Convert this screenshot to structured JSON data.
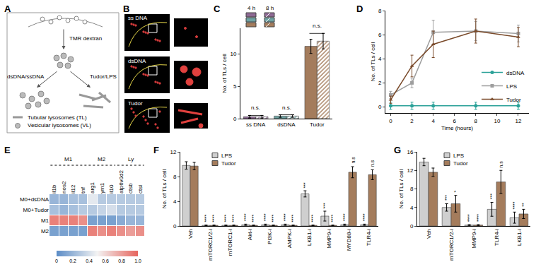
{
  "diagram": {
    "panel": "A",
    "labels": {
      "stimulus": "TMR dextran",
      "left": "dsDNA/ssDNA",
      "right": "Tudor/LPS",
      "tubular": "Tubular lysosomes (TL)",
      "vesicular": "Vesicular lysosomes (VL)"
    }
  },
  "images": {
    "panel": "B",
    "labels": [
      "ss DNA",
      "dsDNA",
      "Tudor"
    ]
  },
  "chart_data": [
    {
      "panel": "C",
      "type": "bar",
      "legend": "top",
      "categories": [
        "ss DNA",
        "dsDNA",
        "Tudor"
      ],
      "y_label": "No. of TLs / cell",
      "ylim": [
        0,
        14
      ],
      "yticks": [
        0,
        5,
        10
      ],
      "series": [
        {
          "name": "4 h",
          "colors": [
            "#8e6a94",
            "#6fa3a3",
            "#a47c5c"
          ],
          "values": [
            0.3,
            0.4,
            11.2
          ],
          "errors": [
            0.2,
            0.2,
            1.1
          ]
        },
        {
          "name": "8 h",
          "colors": [
            "#8e6a94",
            "#6fa3a3",
            "#a47c5c"
          ],
          "values": [
            0.3,
            0.4,
            12.0
          ],
          "errors": [
            0.2,
            0.2,
            1.2
          ],
          "marker": "hatched"
        }
      ],
      "annotations": [
        "n.s.",
        "n.s.",
        "n.s."
      ]
    },
    {
      "panel": "D",
      "type": "line",
      "legend": "right",
      "x": [
        0,
        2,
        4,
        8,
        12
      ],
      "x_label": "Time (hours)",
      "y_label": "No. of TLs / cell",
      "xlim": [
        -0.5,
        13
      ],
      "xticks": [
        0,
        2,
        4,
        6,
        8,
        10,
        12
      ],
      "ylim": [
        -0.5,
        8
      ],
      "yticks": [
        0,
        2,
        4,
        6,
        8
      ],
      "series": [
        {
          "name": "dsDNA",
          "color": "#2aa198",
          "marker": "circle",
          "line_style": "solid",
          "values": [
            0.1,
            0.1,
            0.1,
            0.1,
            0.1
          ],
          "errors": [
            0.3,
            0.3,
            0.3,
            0.3,
            0.3
          ]
        },
        {
          "name": "LPS",
          "color": "#9e9e9e",
          "marker": "square",
          "line_style": "solid",
          "values": [
            1.0,
            2.0,
            6.2,
            6.3,
            6.1
          ],
          "errors": [
            0.3,
            0.4,
            1.0,
            0.8,
            0.7
          ]
        },
        {
          "name": "Tudor",
          "color": "#7a4a2a",
          "marker": "triangle-up",
          "line_style": "solid",
          "values": [
            0.6,
            3.4,
            5.2,
            6.3,
            5.8
          ],
          "errors": [
            0.3,
            0.9,
            1.1,
            1.0,
            0.8
          ]
        }
      ]
    },
    {
      "panel": "E",
      "type": "heatmap",
      "columns": [
        "il1b",
        "nos2",
        "il12",
        "tnf",
        "arg1",
        "ym1",
        "il10",
        "atp6v0d2",
        "ctsb",
        "ctsl"
      ],
      "rows": [
        "M0+dsDNA",
        "M0+Tudor",
        "M1",
        "M2"
      ],
      "column_groups": [
        {
          "label": "M1",
          "columns": [
            "il1b",
            "nos2",
            "il12",
            "tnf"
          ]
        },
        {
          "label": "M2",
          "columns": [
            "arg1",
            "ym1",
            "il10"
          ]
        },
        {
          "label": "Ly",
          "columns": [
            "atp6v0d2",
            "ctsb",
            "ctsl"
          ]
        }
      ],
      "cells": [
        [
          0.2,
          0.2,
          0.25,
          0.25,
          0.45,
          0.3,
          0.3,
          0.3,
          0.3,
          0.3
        ],
        [
          0.25,
          0.2,
          0.25,
          0.3,
          0.3,
          0.35,
          0.4,
          0.3,
          0.3,
          0.3
        ],
        [
          0.9,
          0.9,
          0.9,
          0.85,
          0.1,
          0.1,
          0.1,
          0.15,
          0.2,
          0.2
        ],
        [
          0.1,
          0.1,
          0.1,
          0.1,
          0.9,
          0.85,
          0.9,
          0.85,
          0.8,
          0.85
        ]
      ],
      "zlim": [
        0,
        1
      ],
      "zticks": [
        0,
        0.2,
        0.4,
        0.6,
        0.8,
        {
          "value": 1,
          "label": "1.0"
        }
      ]
    },
    {
      "panel": "F",
      "type": "bar",
      "legend": "top",
      "categories": [
        "Veh",
        "mTORC1/2-i",
        "mTORC1-i",
        "Akt-i",
        "PI3K-i",
        "AMPK-i",
        "LKB1-i",
        "MMP9-i",
        "MYD88-i",
        "TLR4-i"
      ],
      "y_label": "No. of TLs / cell",
      "ylim": [
        0,
        12
      ],
      "yticks": [
        0,
        4,
        8,
        12
      ],
      "series": [
        {
          "name": "LPS",
          "color": "#cfcfcf",
          "values": [
            9.8,
            0.1,
            0.1,
            0.2,
            0.2,
            0.2,
            5.2,
            1.6,
            0.2,
            0.2
          ],
          "errors": [
            0.6,
            0.05,
            0.05,
            0.1,
            0.1,
            0.1,
            0.5,
            0.8,
            0.1,
            0.1
          ],
          "annotations": [
            null,
            "****",
            "****",
            "****",
            "****",
            "****",
            "***",
            "***",
            "****",
            "****"
          ]
        },
        {
          "name": "Tudor",
          "color": "#a47c5c",
          "values": [
            9.7,
            0.1,
            0.1,
            0.1,
            0.1,
            0.1,
            0.1,
            0.1,
            8.7,
            8.3
          ],
          "errors": [
            0.6,
            0.05,
            0.05,
            0.05,
            0.05,
            0.05,
            0.05,
            0.05,
            0.9,
            0.8
          ],
          "annotations": [
            null,
            "****",
            "****",
            "****",
            "****",
            "****",
            "****",
            "****",
            "n.s",
            "n.s"
          ]
        }
      ]
    },
    {
      "panel": "G",
      "type": "bar",
      "legend": "top",
      "categories": [
        "Veh",
        "mTORC1/2-i",
        "MMP9-i",
        "TLR4-i",
        "LKB1-i"
      ],
      "y_label": "No. of TLs / cell",
      "ylim": [
        0,
        16
      ],
      "yticks": [
        0,
        4,
        8,
        12,
        16
      ],
      "series": [
        {
          "name": "LPS",
          "color": "#cfcfcf",
          "values": [
            13.8,
            4.0,
            0.2,
            3.6,
            1.8
          ],
          "errors": [
            0.8,
            0.8,
            0.1,
            1.5,
            1.2
          ],
          "annotations": [
            null,
            "***",
            "****",
            "***",
            "****"
          ]
        },
        {
          "name": "Tudor",
          "color": "#a47c5c",
          "values": [
            11.6,
            4.8,
            0.2,
            9.5,
            2.6
          ],
          "errors": [
            0.9,
            1.8,
            0.1,
            2.5,
            1.0
          ],
          "annotations": [
            null,
            "*",
            "****",
            "n.s",
            "**"
          ]
        }
      ]
    }
  ]
}
